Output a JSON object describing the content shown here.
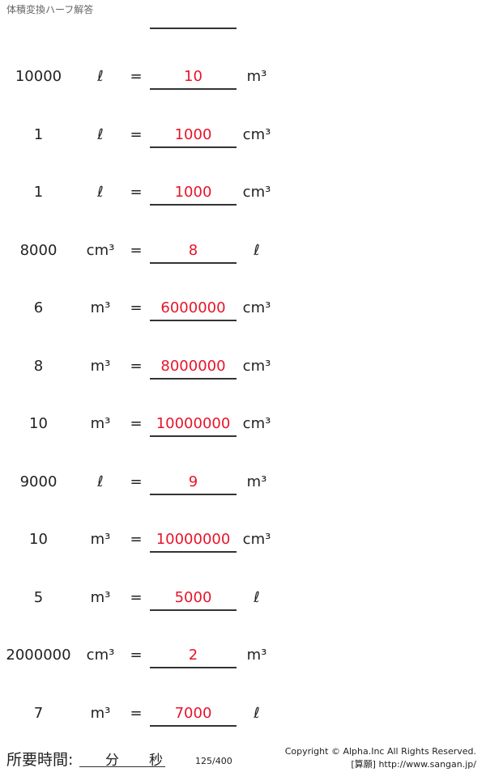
{
  "title": "体積変換ハーフ解答",
  "rows": [
    {
      "value": "10000",
      "from": "ℓ",
      "answer": "10",
      "to": "m³"
    },
    {
      "value": "1",
      "from": "ℓ",
      "answer": "1000",
      "to": "cm³"
    },
    {
      "value": "1",
      "from": "ℓ",
      "answer": "1000",
      "to": "cm³"
    },
    {
      "value": "8000",
      "from": "cm³",
      "answer": "8",
      "to": "ℓ"
    },
    {
      "value": "6",
      "from": "m³",
      "answer": "6000000",
      "to": "cm³"
    },
    {
      "value": "8",
      "from": "m³",
      "answer": "8000000",
      "to": "cm³"
    },
    {
      "value": "10",
      "from": "m³",
      "answer": "10000000",
      "to": "cm³"
    },
    {
      "value": "9000",
      "from": "ℓ",
      "answer": "9",
      "to": "m³"
    },
    {
      "value": "10",
      "from": "m³",
      "answer": "10000000",
      "to": "cm³"
    },
    {
      "value": "5",
      "from": "m³",
      "answer": "5000",
      "to": "ℓ"
    },
    {
      "value": "2000000",
      "from": "cm³",
      "answer": "2",
      "to": "m³"
    },
    {
      "value": "7",
      "from": "m³",
      "answer": "7000",
      "to": "ℓ"
    }
  ],
  "equals": "=",
  "footer": {
    "time_label": "所要時間:",
    "minutes": "分",
    "seconds": "秒",
    "page": "125/400",
    "copyright": "Copyright © Alpha.Inc All Rights Reserved.",
    "site": "[算願] http://www.sangan.jp/"
  },
  "colors": {
    "answer": "#e8142a"
  }
}
